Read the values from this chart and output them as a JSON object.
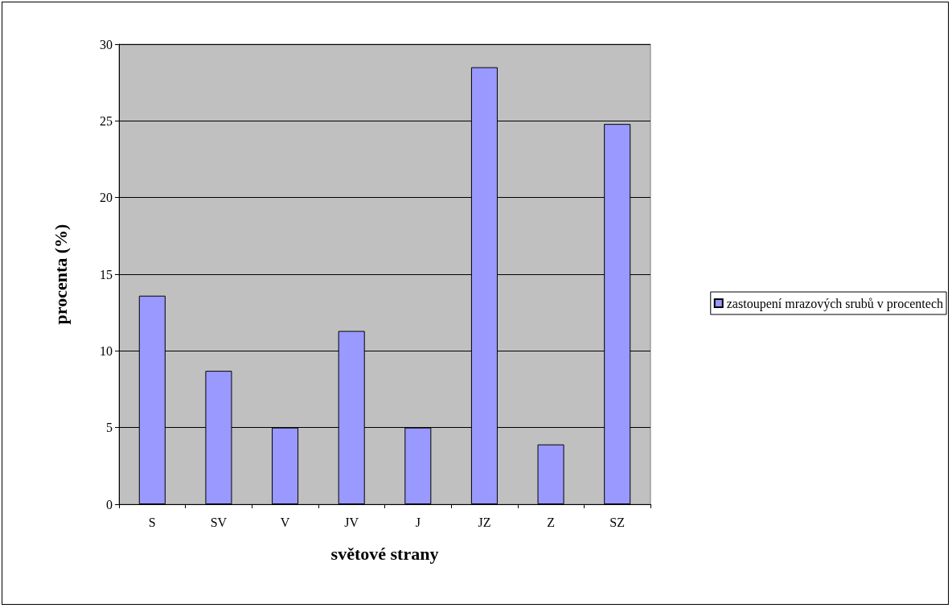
{
  "chart_data": {
    "type": "bar",
    "xlabel": "světové strany",
    "ylabel": "procenta (%)",
    "categories": [
      "S",
      "SV",
      "V",
      "JV",
      "J",
      "JZ",
      "Z",
      "SZ"
    ],
    "series": [
      {
        "name": "zastoupení mrazových srubů v procentech",
        "color": "#9999ff",
        "values": [
          13.6,
          8.7,
          5,
          11.3,
          5,
          28.5,
          3.9,
          24.8
        ]
      }
    ],
    "ylim": [
      0,
      30
    ],
    "yticks": [
      0,
      5,
      10,
      15,
      20,
      25,
      30
    ],
    "grid": "y",
    "legend": "right"
  }
}
